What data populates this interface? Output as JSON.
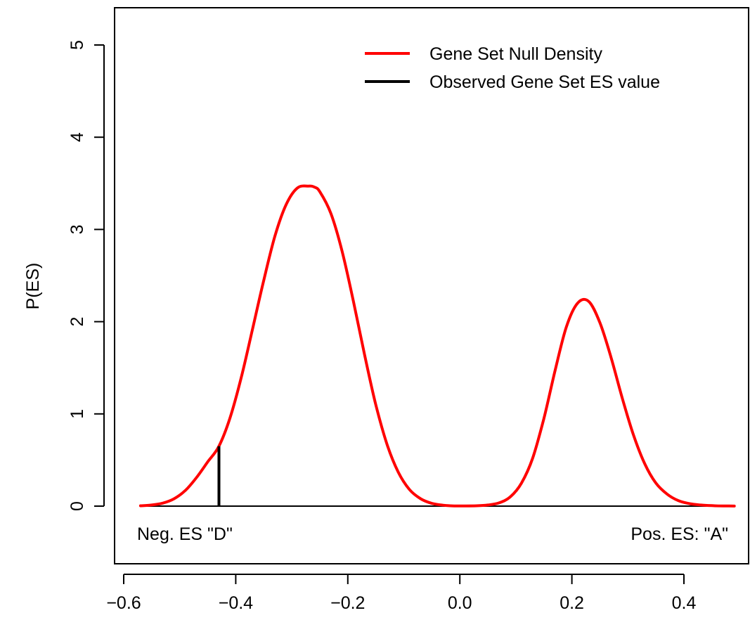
{
  "chart_data": {
    "type": "line",
    "title": "",
    "xlabel": "",
    "ylabel": "P(ES)",
    "xlim": [
      -0.6,
      0.5
    ],
    "ylim": [
      -0.75,
      5.3
    ],
    "x_ticks": [
      "−0.6",
      "−0.4",
      "−0.2",
      "0.0",
      "0.2",
      "0.4"
    ],
    "x_tick_values": [
      -0.6,
      -0.4,
      -0.2,
      0.0,
      0.2,
      0.4
    ],
    "y_ticks": [
      "0",
      "1",
      "2",
      "3",
      "4",
      "5"
    ],
    "y_tick_values": [
      0,
      1,
      2,
      3,
      4,
      5
    ],
    "grid": false,
    "legend_position": "top-right",
    "legend": [
      {
        "label": "Gene Set Null Density",
        "color": "#ff0000"
      },
      {
        "label": "Observed Gene Set ES value",
        "color": "#000000"
      }
    ],
    "series": [
      {
        "name": "Gene Set Null Density",
        "color": "#ff0000",
        "style": "line",
        "x": [
          -0.57,
          -0.55,
          -0.53,
          -0.51,
          -0.49,
          -0.47,
          -0.45,
          -0.43,
          -0.41,
          -0.39,
          -0.37,
          -0.35,
          -0.33,
          -0.31,
          -0.29,
          -0.27,
          -0.26,
          -0.25,
          -0.23,
          -0.21,
          -0.19,
          -0.17,
          -0.15,
          -0.13,
          -0.11,
          -0.09,
          -0.07,
          -0.05,
          -0.03,
          -0.01,
          0.01,
          0.03,
          0.05,
          0.07,
          0.09,
          0.11,
          0.13,
          0.15,
          0.17,
          0.19,
          0.21,
          0.23,
          0.25,
          0.27,
          0.29,
          0.31,
          0.33,
          0.35,
          0.37,
          0.39,
          0.41,
          0.43,
          0.45,
          0.47,
          0.49
        ],
        "y": [
          0.004,
          0.012,
          0.033,
          0.08,
          0.17,
          0.31,
          0.48,
          0.65,
          0.96,
          1.4,
          1.92,
          2.45,
          2.93,
          3.27,
          3.45,
          3.47,
          3.46,
          3.41,
          3.17,
          2.76,
          2.22,
          1.64,
          1.1,
          0.67,
          0.37,
          0.18,
          0.08,
          0.03,
          0.01,
          0.002,
          0.002,
          0.004,
          0.012,
          0.035,
          0.1,
          0.25,
          0.52,
          0.95,
          1.47,
          1.94,
          2.2,
          2.22,
          1.99,
          1.61,
          1.17,
          0.77,
          0.46,
          0.25,
          0.13,
          0.06,
          0.027,
          0.012,
          0.005,
          0.002,
          0.001
        ]
      }
    ],
    "observed": {
      "name": "Observed Gene Set ES value",
      "x": -0.43,
      "y": 0.65,
      "color": "#000000"
    },
    "annotations": {
      "left": "Neg. ES \"D\"",
      "right": "Pos. ES: \"A\""
    }
  }
}
